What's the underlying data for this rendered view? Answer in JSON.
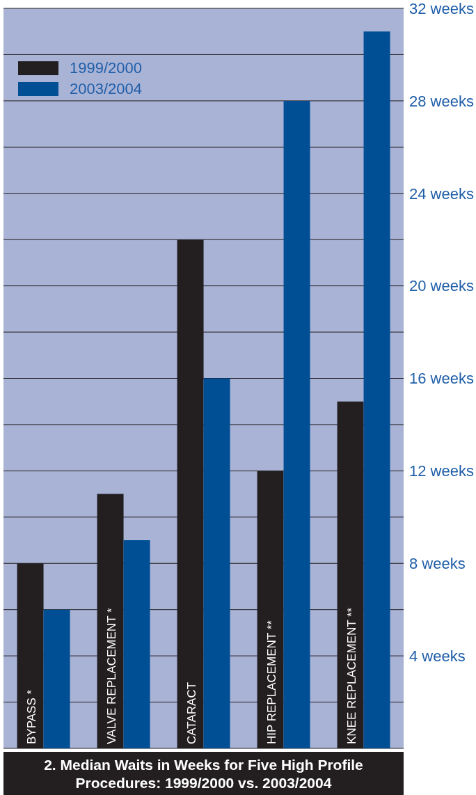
{
  "chart_data": {
    "type": "bar",
    "title": "2. Median Waits in Weeks for Five High Profile Procedures: 1999/2000 vs. 2003/2004",
    "categories": [
      "BYPASS *",
      "VALVE REPLACEMENT *",
      "CATARACT",
      "HIP REPLACEMENT **",
      "KNEE REPLACEMENT **"
    ],
    "series": [
      {
        "name": "1999/2000",
        "color": "#231f20",
        "values": [
          8,
          11,
          22,
          12,
          15
        ]
      },
      {
        "name": "2003/2004",
        "color": "#004f95",
        "values": [
          6,
          9,
          16,
          28,
          31
        ]
      }
    ],
    "ylim": [
      0,
      32
    ],
    "yticks": [
      {
        "value": 2,
        "label": null
      },
      {
        "value": 4,
        "label": "4 weeks"
      },
      {
        "value": 6,
        "label": null
      },
      {
        "value": 8,
        "label": "8 weeks"
      },
      {
        "value": 10,
        "label": null
      },
      {
        "value": 12,
        "label": "12 weeks"
      },
      {
        "value": 14,
        "label": null
      },
      {
        "value": 16,
        "label": "16 weeks"
      },
      {
        "value": 18,
        "label": null
      },
      {
        "value": 20,
        "label": "20 weeks"
      },
      {
        "value": 22,
        "label": null
      },
      {
        "value": 24,
        "label": "24 weeks"
      },
      {
        "value": 26,
        "label": null
      },
      {
        "value": 28,
        "label": "28 weeks"
      },
      {
        "value": 30,
        "label": null
      },
      {
        "value": 32,
        "label": "32 weeks"
      }
    ],
    "grid": "y",
    "legend": "top left"
  }
}
